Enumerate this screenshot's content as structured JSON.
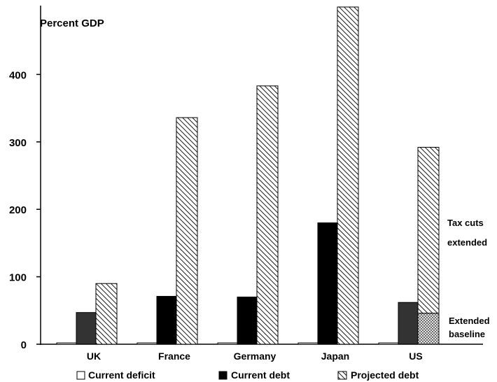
{
  "chart_data": {
    "type": "bar",
    "ylabel": "Percent GDP",
    "ylim": [
      0,
      500
    ],
    "yticks": [
      0,
      100,
      200,
      300,
      400
    ],
    "categories": [
      "UK",
      "France",
      "Germany",
      "Japan",
      "US"
    ],
    "series": [
      {
        "name": "Current deficit",
        "values": [
          2,
          2,
          2,
          2,
          2
        ]
      },
      {
        "name": "Current debt",
        "values": [
          47,
          71,
          70,
          180,
          62
        ]
      },
      {
        "name": "Projected debt",
        "values": [
          90,
          336,
          383,
          500,
          292
        ]
      }
    ],
    "us_projected_debt_components": [
      {
        "label": "Extended baseline",
        "value": 46
      },
      {
        "label": "Tax cuts extended",
        "value": 246
      }
    ],
    "annotations": [
      "Tax cuts",
      "extended",
      "Extended",
      "baseline"
    ],
    "grid": false,
    "legend_position": "bottom",
    "colors": {
      "current_deficit": "#ffffff",
      "current_debt": "#000000",
      "projected_debt_hatch": "#000000"
    }
  }
}
